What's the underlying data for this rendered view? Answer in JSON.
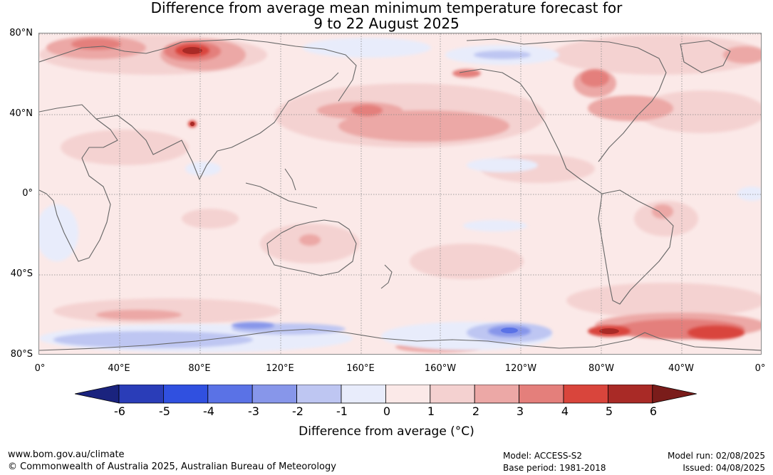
{
  "title_line1": "Difference from average mean minimum temperature forecast for",
  "title_line2": "9 to 22 August 2025",
  "lat_labels": [
    "80°N",
    "40°N",
    "0°",
    "40°S",
    "80°S"
  ],
  "lon_labels": [
    "0°",
    "40°E",
    "80°E",
    "120°E",
    "160°E",
    "160°W",
    "120°W",
    "80°W",
    "40°W",
    "0°"
  ],
  "colorbar": {
    "ticks": [
      "-6",
      "-5",
      "-4",
      "-3",
      "-2",
      "-1",
      "0",
      "1",
      "2",
      "3",
      "4",
      "5",
      "6"
    ],
    "colors": [
      "#1a237e",
      "#2a3db8",
      "#3050e0",
      "#5a72e6",
      "#8796ea",
      "#bec6f2",
      "#e8ecfb",
      "#fbe9e8",
      "#f4d1d0",
      "#eca8a6",
      "#e47f7b",
      "#d9453c",
      "#a92a26",
      "#7a1c1a"
    ],
    "label": "Difference from average (°C)"
  },
  "footer": {
    "url": "www.bom.gov.au/climate",
    "copyright": "© Commonwealth of Australia 2025, Australian Bureau of Meteorology",
    "model": "Model: ACCESS-S2",
    "base_period": "Base period: 1981-2018",
    "model_run": "Model run: 02/08/2025",
    "issued": "Issued: 04/08/2025"
  }
}
